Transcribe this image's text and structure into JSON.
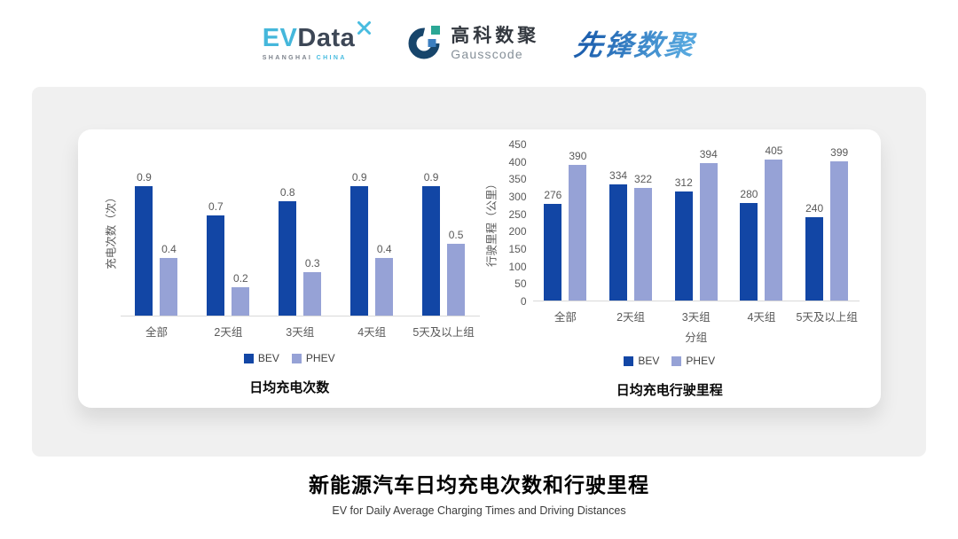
{
  "header": {
    "evdata": {
      "ev": "EV",
      "data": "Data",
      "tagline_left": "SHANGHAI",
      "tagline_right": "CHINA"
    },
    "gausscode": {
      "cn": "高科数聚",
      "en": "Gausscode"
    },
    "pioneer": {
      "text": "先锋数聚"
    }
  },
  "chart_data": [
    {
      "type": "bar",
      "title": "日均充电次数",
      "ylabel": "充电次数（次）",
      "xlabel": "",
      "categories": [
        "全部",
        "2天组",
        "3天组",
        "4天组",
        "5天及以上组"
      ],
      "series": [
        {
          "name": "BEV",
          "values": [
            0.9,
            0.7,
            0.8,
            0.9,
            0.9
          ]
        },
        {
          "name": "PHEV",
          "values": [
            0.4,
            0.2,
            0.3,
            0.4,
            0.5
          ]
        }
      ],
      "ylim": [
        0,
        1.2
      ],
      "yticks": null,
      "grid": false,
      "legend_position": "bottom",
      "data_labels": true
    },
    {
      "type": "bar",
      "title": "日均充电行驶里程",
      "ylabel": "行驶里程（公里）",
      "xlabel": "分组",
      "categories": [
        "全部",
        "2天组",
        "3天组",
        "4天组",
        "5天及以上组"
      ],
      "series": [
        {
          "name": "BEV",
          "values": [
            276,
            334,
            312,
            280,
            240
          ]
        },
        {
          "name": "PHEV",
          "values": [
            390,
            322,
            394,
            405,
            399
          ]
        }
      ],
      "ylim": [
        0,
        450
      ],
      "yticks": [
        0,
        50,
        100,
        150,
        200,
        250,
        300,
        350,
        400,
        450
      ],
      "grid": false,
      "legend_position": "bottom",
      "data_labels": true
    }
  ],
  "footer": {
    "title": "新能源汽车日均充电次数和行驶里程",
    "subtitle": "EV for Daily Average Charging Times and Driving Distances"
  },
  "colors": {
    "bev": "#1246A5",
    "phev": "#96A2D6",
    "panel": "#F0F0F0",
    "baseline": "#D9D9D9"
  }
}
